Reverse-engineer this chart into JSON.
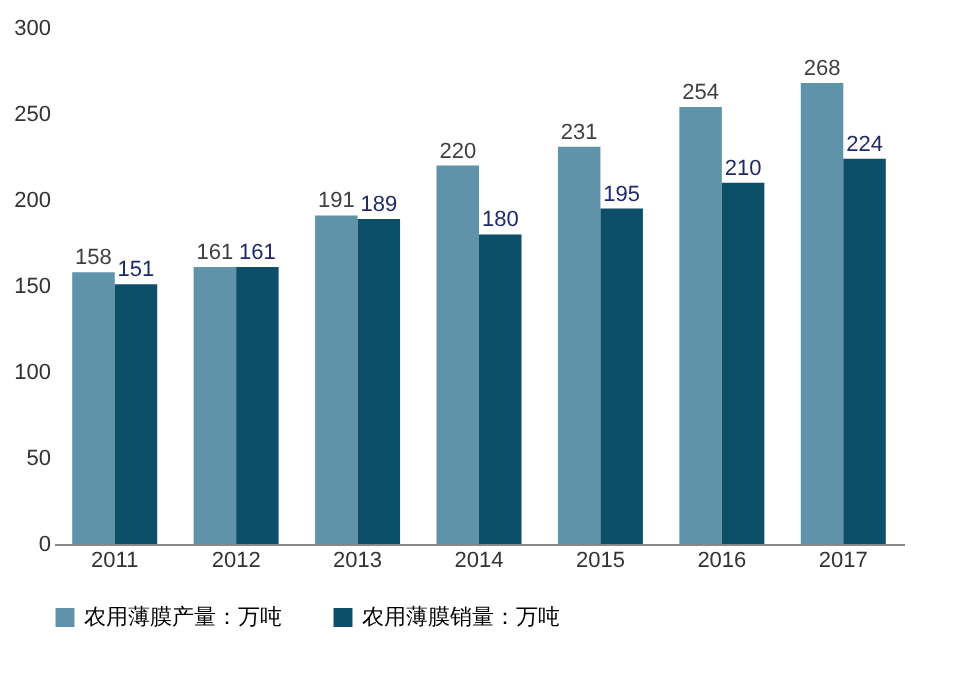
{
  "chart_data": {
    "type": "bar",
    "categories": [
      "2011",
      "2012",
      "2013",
      "2014",
      "2015",
      "2016",
      "2017"
    ],
    "series": [
      {
        "name": "农用薄膜产量：万吨",
        "color": "#5f93aa",
        "values": [
          158,
          161,
          191,
          220,
          231,
          254,
          268
        ]
      },
      {
        "name": "农用薄膜销量：万吨",
        "color": "#0d4e69",
        "values": [
          151,
          161,
          189,
          180,
          195,
          210,
          224
        ]
      }
    ],
    "ylim": [
      0,
      300
    ],
    "yticks": [
      0,
      50,
      100,
      150,
      200,
      250,
      300
    ],
    "data_labels": true,
    "legend": "bottom",
    "grid": false
  }
}
